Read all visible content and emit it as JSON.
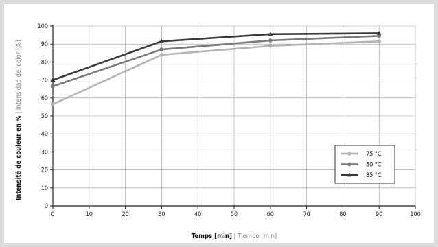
{
  "chart_data": {
    "type": "line",
    "xlabel_bold": "Temps [min]",
    "xlabel_sep": " | ",
    "xlabel_light": "Tiempo [min]",
    "ylabel_bold": "Intensité de couleur en %",
    "ylabel_sep": " | ",
    "ylabel_light": "Intensidad del color [%]",
    "xlim": [
      0,
      100
    ],
    "ylim": [
      0,
      100
    ],
    "x_ticks": [
      0,
      10,
      20,
      30,
      40,
      50,
      60,
      70,
      80,
      90,
      100
    ],
    "y_ticks": [
      0,
      10,
      20,
      30,
      40,
      50,
      60,
      70,
      80,
      90,
      100
    ],
    "grid": true,
    "legend_position": "right",
    "series": [
      {
        "name": "75 °C",
        "color": "#b4b4b4",
        "marker": "circle",
        "x": [
          0,
          30,
          60,
          90
        ],
        "y": [
          56.5,
          84,
          89,
          91.5
        ]
      },
      {
        "name": "80 °C",
        "color": "#7a7a7a",
        "marker": "circle",
        "x": [
          0,
          30,
          60,
          90
        ],
        "y": [
          66.5,
          87,
          92,
          94.5
        ]
      },
      {
        "name": "85 °C",
        "color": "#3a3a3a",
        "marker": "triangle",
        "x": [
          0,
          30,
          60,
          90
        ],
        "y": [
          70,
          91.5,
          95.5,
          96
        ]
      }
    ]
  }
}
